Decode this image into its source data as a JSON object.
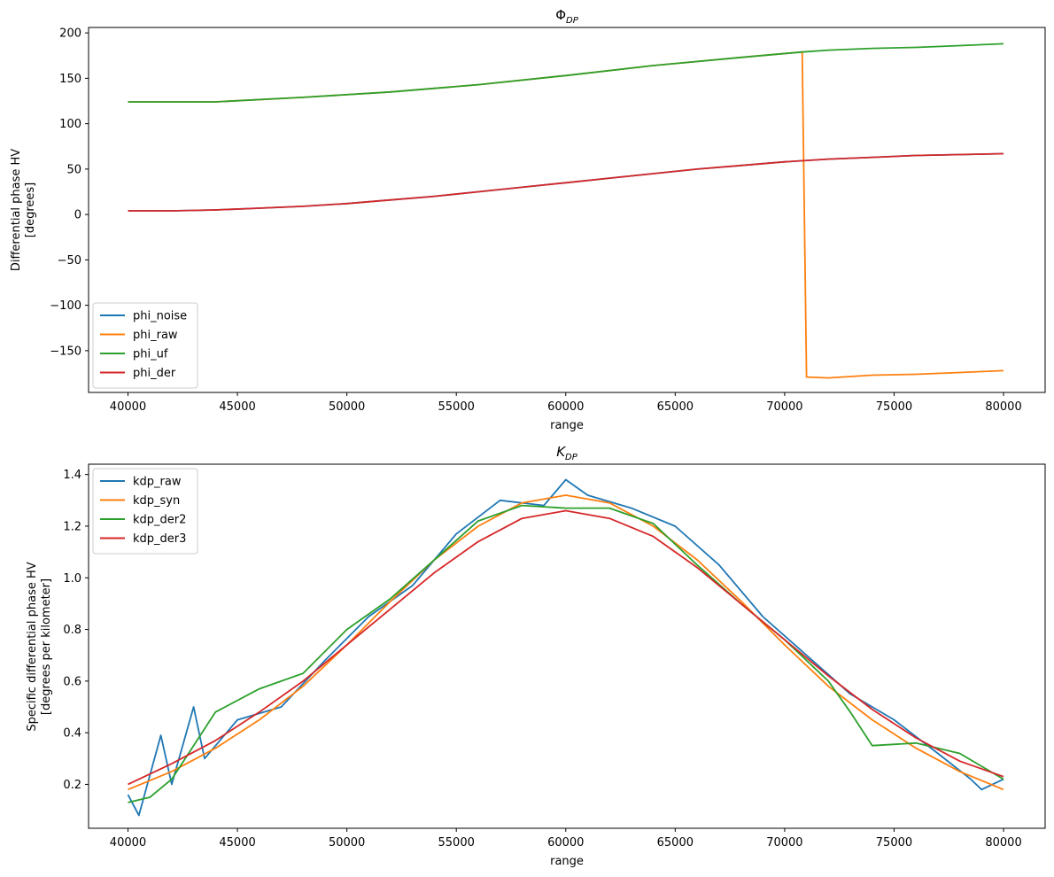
{
  "chart_data": [
    {
      "type": "line",
      "title": "ΦDP",
      "title_main": "Φ",
      "title_sub": "DP",
      "xlabel": "range",
      "ylabel_lines": [
        "Differential phase HV",
        "[degrees]"
      ],
      "xlim": [
        38200,
        81900
      ],
      "ylim": [
        -196,
        206
      ],
      "xticks": [
        40000,
        45000,
        50000,
        55000,
        60000,
        65000,
        70000,
        75000,
        80000
      ],
      "yticks": [
        -150,
        -100,
        -50,
        0,
        50,
        100,
        150,
        200
      ],
      "ytick_labels": [
        "−150",
        "−100",
        "−50",
        "0",
        "50",
        "100",
        "150",
        "200"
      ],
      "legend_position": "lower left",
      "grid": false,
      "series": [
        {
          "name": "phi_noise",
          "color": "#1f77b4",
          "x": [
            40000,
            42000,
            44000,
            46000,
            48000,
            50000,
            52000,
            54000,
            56000,
            58000,
            60000,
            62000,
            64000,
            66000,
            68000,
            70000,
            72000,
            74000,
            76000,
            78000,
            80000
          ],
          "y": [
            4,
            4,
            5,
            7,
            9,
            12,
            16,
            20,
            25,
            30,
            35,
            40,
            45,
            50,
            54,
            58,
            61,
            63,
            65,
            66,
            67
          ]
        },
        {
          "name": "phi_raw",
          "color": "#ff7f0e",
          "x": [
            40000,
            44000,
            48000,
            52000,
            56000,
            60000,
            64000,
            68000,
            70800,
            71000,
            72000,
            74000,
            76000,
            78000,
            80000
          ],
          "y": [
            124,
            124,
            129,
            135,
            143,
            153,
            164,
            173,
            179,
            -179,
            -180,
            -177,
            -176,
            -174,
            -172
          ]
        },
        {
          "name": "phi_uf",
          "color": "#2ca02c",
          "x": [
            40000,
            44000,
            48000,
            52000,
            56000,
            60000,
            64000,
            68000,
            70800,
            72000,
            74000,
            76000,
            78000,
            80000
          ],
          "y": [
            124,
            124,
            129,
            135,
            143,
            153,
            164,
            173,
            179,
            181,
            183,
            184,
            186,
            188
          ]
        },
        {
          "name": "phi_der",
          "color": "#d62728",
          "x": [
            40000,
            42000,
            44000,
            46000,
            48000,
            50000,
            52000,
            54000,
            56000,
            58000,
            60000,
            62000,
            64000,
            66000,
            68000,
            70000,
            72000,
            74000,
            76000,
            78000,
            80000
          ],
          "y": [
            4,
            4,
            5,
            7,
            9,
            12,
            16,
            20,
            25,
            30,
            35,
            40,
            45,
            50,
            54,
            58,
            61,
            63,
            65,
            66,
            67
          ]
        }
      ]
    },
    {
      "type": "line",
      "title": "KDP",
      "title_main": "K",
      "title_sub": "DP",
      "xlabel": "range",
      "ylabel_lines": [
        "Specific differential phase HV",
        "[degrees per kilometer]"
      ],
      "xlim": [
        38200,
        81900
      ],
      "ylim": [
        0.03,
        1.44
      ],
      "xticks": [
        40000,
        45000,
        50000,
        55000,
        60000,
        65000,
        70000,
        75000,
        80000
      ],
      "yticks": [
        0.2,
        0.4,
        0.6,
        0.8,
        1.0,
        1.2,
        1.4
      ],
      "ytick_labels": [
        "0.2",
        "0.4",
        "0.6",
        "0.8",
        "1.0",
        "1.2",
        "1.4"
      ],
      "legend_position": "upper left",
      "grid": false,
      "series": [
        {
          "name": "kdp_raw",
          "color": "#1f77b4",
          "x": [
            40000,
            40500,
            41500,
            42000,
            43000,
            43500,
            45000,
            47000,
            49000,
            51000,
            53000,
            55000,
            57000,
            59000,
            60000,
            61000,
            63000,
            65000,
            67000,
            69000,
            71000,
            73000,
            75000,
            77000,
            78500,
            79000,
            80000
          ],
          "y": [
            0.16,
            0.08,
            0.39,
            0.2,
            0.5,
            0.3,
            0.45,
            0.5,
            0.68,
            0.85,
            0.97,
            1.17,
            1.3,
            1.28,
            1.38,
            1.32,
            1.27,
            1.2,
            1.05,
            0.85,
            0.7,
            0.55,
            0.45,
            0.32,
            0.22,
            0.18,
            0.22
          ]
        },
        {
          "name": "kdp_syn",
          "color": "#ff7f0e",
          "x": [
            40000,
            42000,
            44000,
            46000,
            48000,
            50000,
            52000,
            54000,
            56000,
            58000,
            60000,
            62000,
            64000,
            66000,
            68000,
            70000,
            72000,
            74000,
            76000,
            78000,
            80000
          ],
          "y": [
            0.18,
            0.25,
            0.34,
            0.45,
            0.58,
            0.74,
            0.91,
            1.07,
            1.2,
            1.29,
            1.32,
            1.29,
            1.2,
            1.07,
            0.91,
            0.74,
            0.58,
            0.45,
            0.34,
            0.25,
            0.18
          ]
        },
        {
          "name": "kdp_der2",
          "color": "#2ca02c",
          "x": [
            40000,
            41000,
            42000,
            43000,
            44000,
            46000,
            48000,
            50000,
            52000,
            54000,
            56000,
            58000,
            60000,
            62000,
            64000,
            66000,
            68000,
            70000,
            72000,
            73000,
            74000,
            76000,
            78000,
            80000
          ],
          "y": [
            0.13,
            0.15,
            0.22,
            0.35,
            0.48,
            0.57,
            0.63,
            0.8,
            0.92,
            1.07,
            1.22,
            1.28,
            1.27,
            1.27,
            1.21,
            1.05,
            0.9,
            0.76,
            0.6,
            0.48,
            0.35,
            0.36,
            0.32,
            0.22
          ]
        },
        {
          "name": "kdp_der3",
          "color": "#d62728",
          "x": [
            40000,
            42000,
            44000,
            46000,
            48000,
            50000,
            52000,
            54000,
            56000,
            58000,
            60000,
            62000,
            64000,
            66000,
            68000,
            70000,
            72000,
            74000,
            76000,
            78000,
            80000
          ],
          "y": [
            0.2,
            0.28,
            0.37,
            0.48,
            0.6,
            0.74,
            0.88,
            1.02,
            1.14,
            1.23,
            1.26,
            1.23,
            1.16,
            1.04,
            0.9,
            0.76,
            0.62,
            0.49,
            0.38,
            0.29,
            0.23
          ]
        }
      ]
    }
  ]
}
